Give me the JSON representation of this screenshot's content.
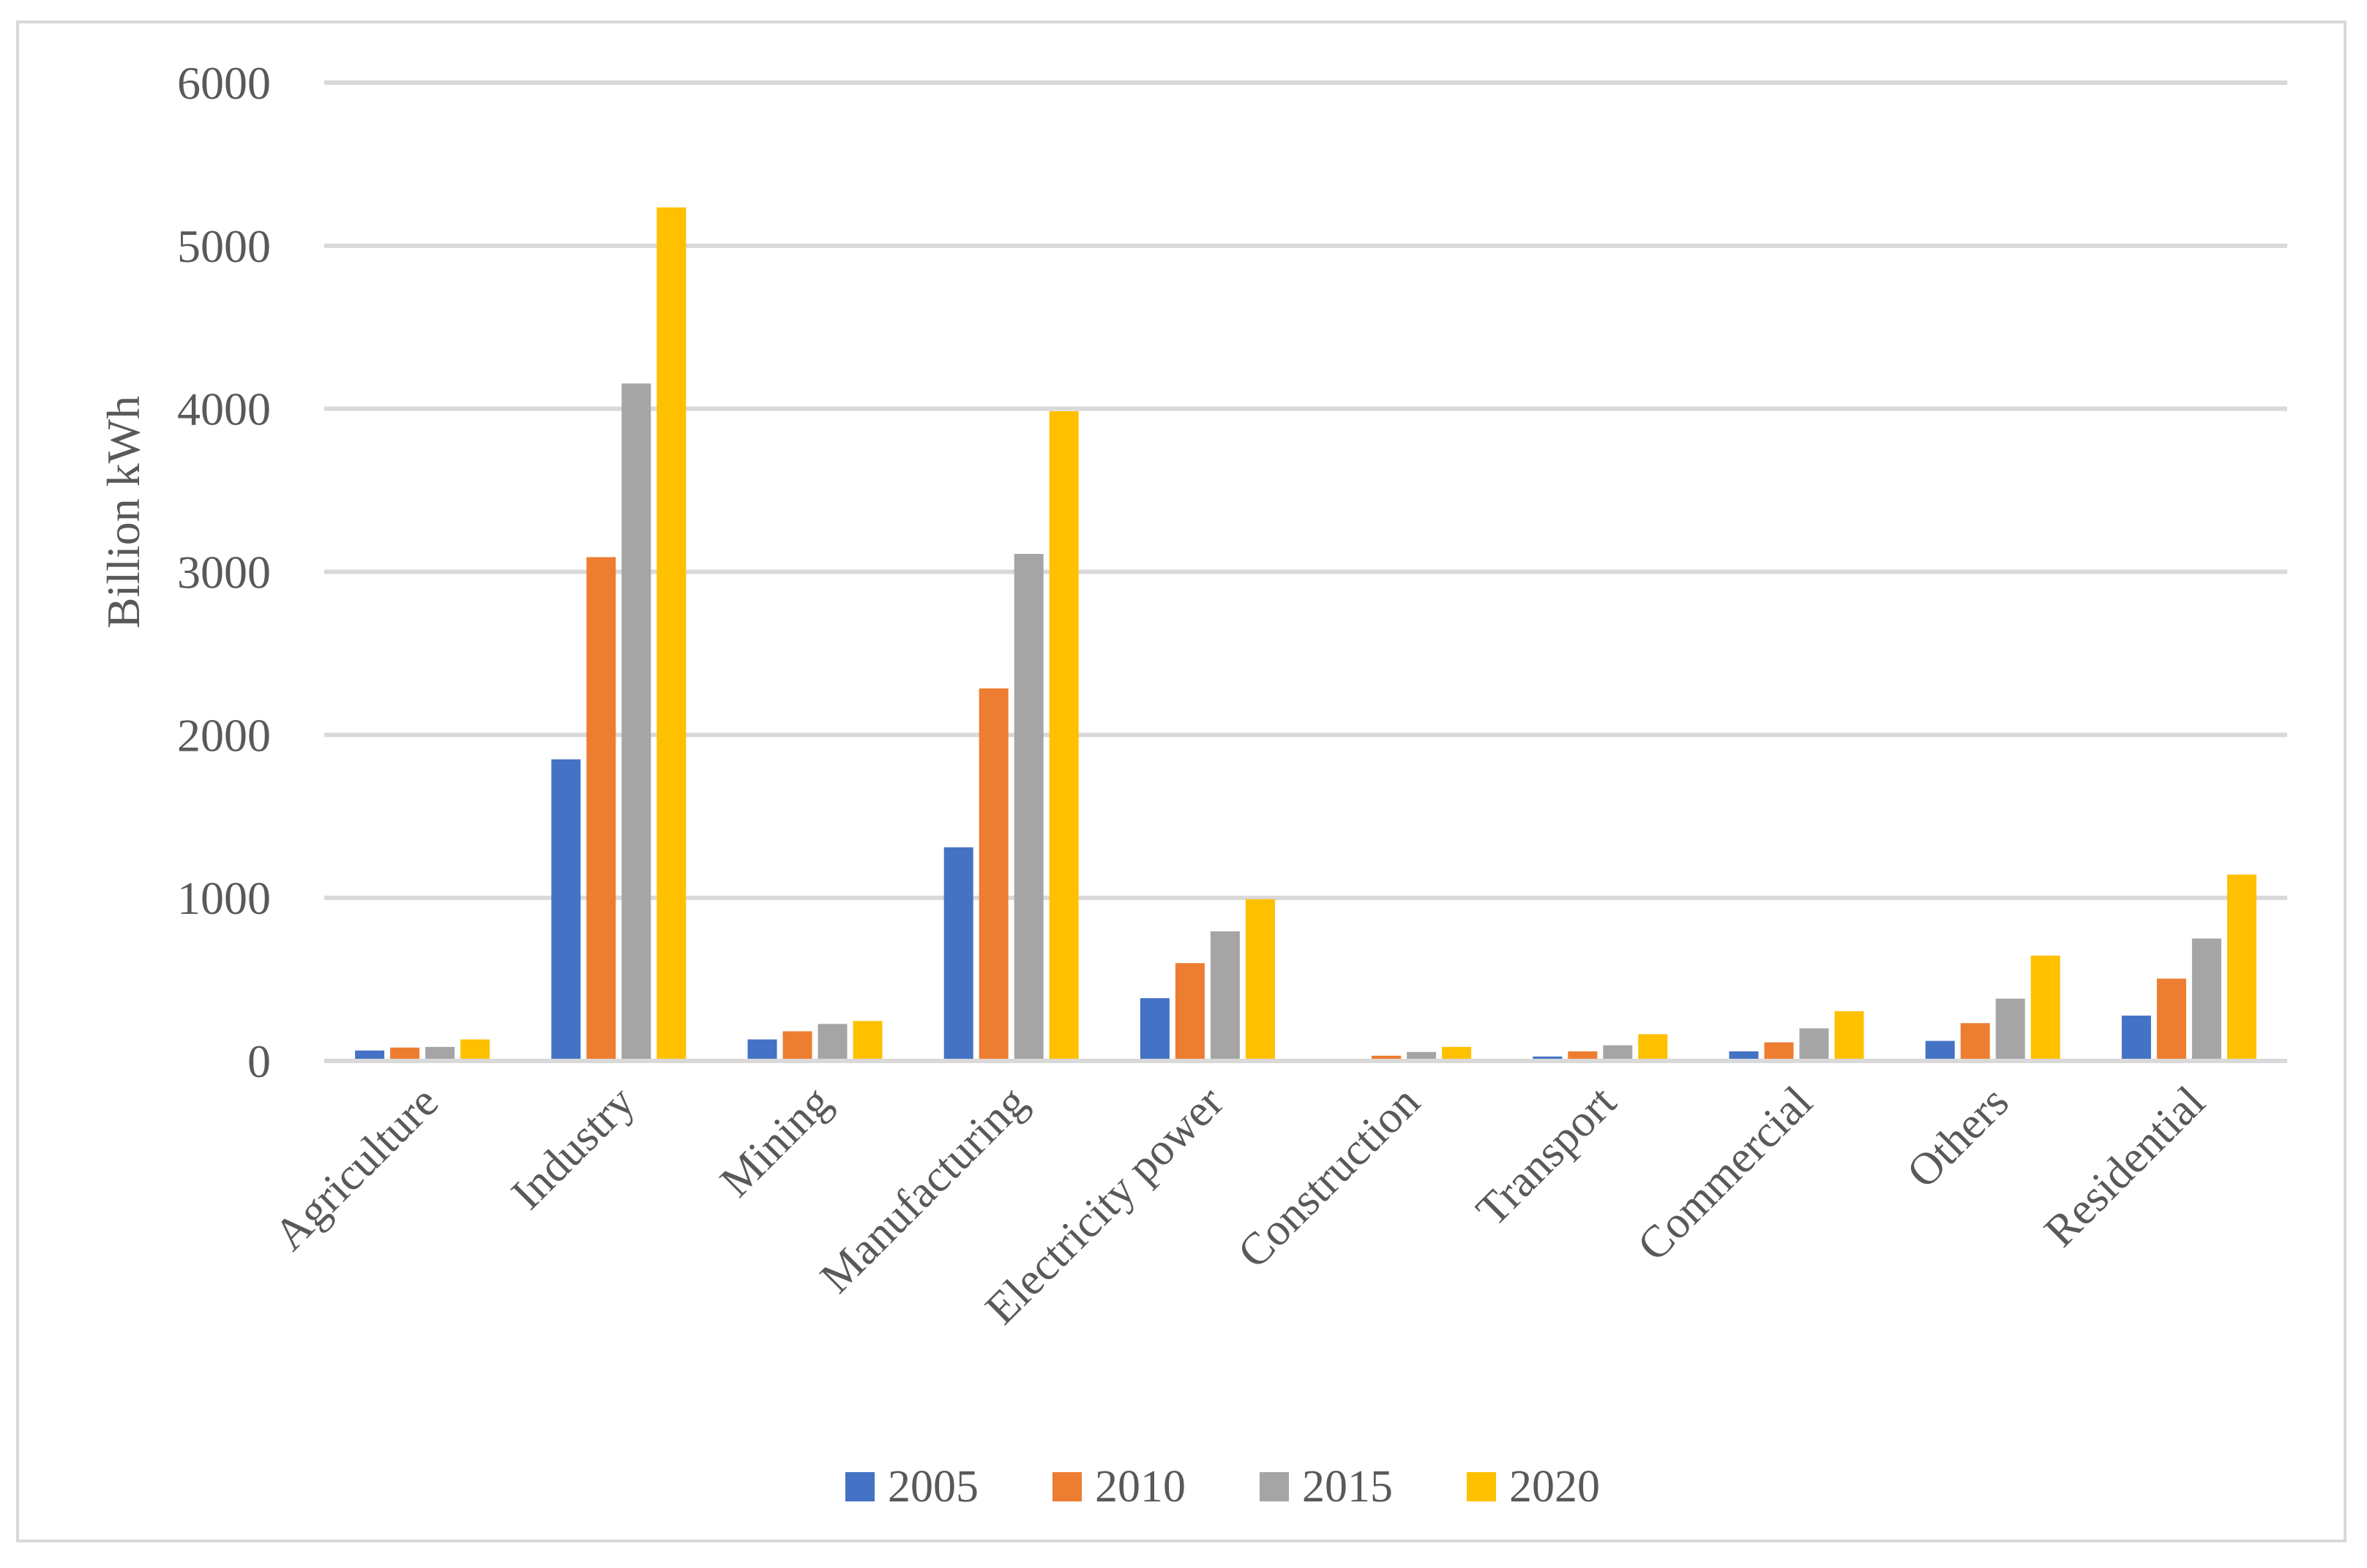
{
  "chart_data": {
    "type": "bar",
    "title": "",
    "xlabel": "",
    "ylabel": "Billion kWh",
    "ylim": [
      0,
      6000
    ],
    "yticks": [
      0,
      1000,
      2000,
      3000,
      4000,
      5000,
      6000
    ],
    "grid": true,
    "legend_position": "bottom",
    "categories": [
      "Agriculture",
      "Industry",
      "Mining",
      "Manufacturing",
      "Electricity power",
      "Construction",
      "Transport",
      "Commercial",
      "Others",
      "Residential"
    ],
    "series": [
      {
        "name": "2005",
        "color": "#4472c4",
        "values": [
          64,
          1850,
          132,
          1310,
          385,
          9,
          27,
          59,
          123,
          278
        ]
      },
      {
        "name": "2010",
        "color": "#ed7d31",
        "values": [
          82,
          3090,
          182,
          2285,
          600,
          32,
          59,
          114,
          232,
          505
        ]
      },
      {
        "name": "2015",
        "color": "#a5a5a5",
        "values": [
          86,
          4155,
          227,
          3110,
          795,
          55,
          96,
          200,
          382,
          751
        ]
      },
      {
        "name": "2020",
        "color": "#ffc000",
        "values": [
          132,
          5235,
          245,
          3985,
          992,
          86,
          164,
          305,
          646,
          1143
        ]
      }
    ]
  }
}
